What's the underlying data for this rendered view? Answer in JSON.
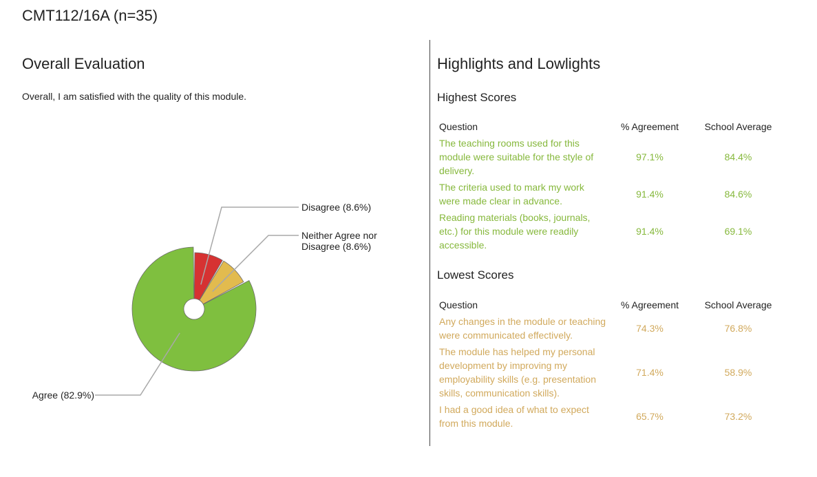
{
  "page_title": "CMT112/16A (n=35)",
  "overall": {
    "title": "Overall Evaluation",
    "question": "Overall, I am satisfied with the quality of this module."
  },
  "chart_data": {
    "type": "pie",
    "slices": [
      {
        "label": "Agree (82.9%)",
        "value": 82.9,
        "color": "#7fbf3f"
      },
      {
        "label": "Disagree (8.6%)",
        "value": 8.6,
        "color": "#d63232"
      },
      {
        "label": "Neither Agree nor Disagree (8.6%)",
        "label_lines": [
          "Neither Agree nor",
          "Disagree (8.6%)"
        ],
        "value": 8.6,
        "color": "#e2bb4e"
      }
    ]
  },
  "highlights": {
    "title": "Highlights and Lowlights",
    "headers": {
      "question": "Question",
      "agreement": "% Agreement",
      "school_average": "School Average"
    },
    "highest": {
      "title": "Highest Scores",
      "rows": [
        {
          "question": "The teaching rooms used for this module were suitable for the style of delivery.",
          "agreement": "97.1%",
          "school_average": "84.4%"
        },
        {
          "question": "The criteria used to mark my work were made clear in advance.",
          "agreement": "91.4%",
          "school_average": "84.6%"
        },
        {
          "question": "Reading materials (books, journals, etc.) for this module were readily accessible.",
          "agreement": "91.4%",
          "school_average": "69.1%"
        }
      ]
    },
    "lowest": {
      "title": "Lowest Scores",
      "rows": [
        {
          "question": "Any changes in the module or teaching were communicated effectively.",
          "agreement": "74.3%",
          "school_average": "76.8%"
        },
        {
          "question": "The module has helped my personal development by improving my employability skills (e.g. presentation skills, communication skills).",
          "agreement": "71.4%",
          "school_average": "58.9%"
        },
        {
          "question": "I had a good idea of what to expect from this module.",
          "agreement": "65.7%",
          "school_average": "73.2%"
        }
      ]
    }
  }
}
